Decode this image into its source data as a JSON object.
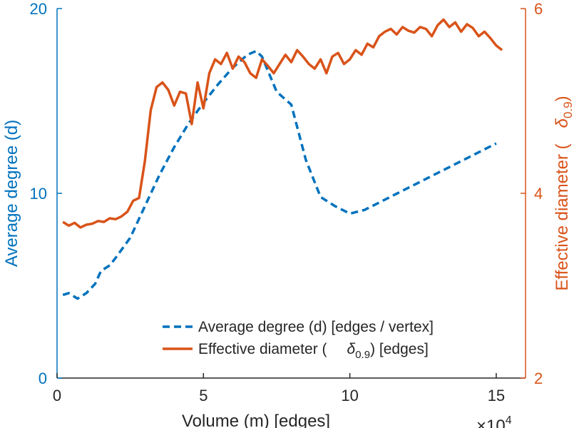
{
  "chart_data": {
    "type": "line",
    "xlabel": "Volume (m) [edges]",
    "x_exponent_base": "×10",
    "x_exponent_power": "4",
    "xlim": [
      0,
      16
    ],
    "xticks": [
      0,
      5,
      10,
      15
    ],
    "ylabel_left": "Average degree (d)",
    "ylim_left": [
      0,
      20
    ],
    "yticks_left": [
      0,
      10,
      20
    ],
    "ylabel_right": "Effective diameter (δ0.9)",
    "ylabel_right_text": "Effective diameter (",
    "ylabel_right_symbol": "δ",
    "ylabel_right_sub": "0.9",
    "ylabel_right_close": ")",
    "ylim_right": [
      2,
      6
    ],
    "yticks_right": [
      2,
      4,
      6
    ],
    "grid": false,
    "legend_position": "bottom-center",
    "colors": {
      "left_axis": "#0072BD",
      "right_axis": "#D95319",
      "frame": "#262626"
    },
    "series": [
      {
        "name": "Average degree (d) [edges / vertex]",
        "axis": "left",
        "style": "dashed",
        "color": "#0072BD",
        "x": [
          0.2,
          0.4,
          0.7,
          1.0,
          1.3,
          1.5,
          1.8,
          2.0,
          2.5,
          3.0,
          3.5,
          4.0,
          4.5,
          5.0,
          5.5,
          6.0,
          6.5,
          6.8,
          7.0,
          7.5,
          8.0,
          8.5,
          9.0,
          9.5,
          10.0,
          10.5,
          11.0,
          11.5,
          12.0,
          12.5,
          13.0,
          13.5,
          14.0,
          14.5,
          15.0
        ],
        "values": [
          4.5,
          4.6,
          4.3,
          4.6,
          5.1,
          5.8,
          6.1,
          6.5,
          7.6,
          9.3,
          11.0,
          12.5,
          13.8,
          14.9,
          15.9,
          16.8,
          17.5,
          17.7,
          17.4,
          15.5,
          14.8,
          11.8,
          9.8,
          9.3,
          8.9,
          9.1,
          9.5,
          9.9,
          10.3,
          10.7,
          11.1,
          11.5,
          11.9,
          12.3,
          12.7
        ]
      },
      {
        "name": "Effective diameter (δ0.9) [edges]",
        "name_text": "Effective diameter (",
        "name_symbol": "δ",
        "name_sub": "0.9",
        "name_tail": ") [edges]",
        "axis": "right",
        "style": "solid",
        "color": "#D95319",
        "x": [
          0.2,
          0.4,
          0.6,
          0.8,
          1.0,
          1.2,
          1.4,
          1.6,
          1.8,
          2.0,
          2.2,
          2.4,
          2.6,
          2.8,
          3.0,
          3.2,
          3.4,
          3.6,
          3.8,
          4.0,
          4.2,
          4.4,
          4.6,
          4.8,
          5.0,
          5.2,
          5.4,
          5.6,
          5.8,
          6.0,
          6.2,
          6.4,
          6.6,
          6.8,
          7.0,
          7.2,
          7.4,
          7.6,
          7.8,
          8.0,
          8.2,
          8.4,
          8.6,
          8.8,
          9.0,
          9.2,
          9.4,
          9.6,
          9.8,
          10.0,
          10.2,
          10.4,
          10.6,
          10.8,
          11.0,
          11.2,
          11.4,
          11.6,
          11.8,
          12.0,
          12.2,
          12.4,
          12.6,
          12.8,
          13.0,
          13.2,
          13.4,
          13.6,
          13.8,
          14.0,
          14.2,
          14.4,
          14.6,
          14.8,
          15.0,
          15.2
        ],
        "values": [
          3.69,
          3.65,
          3.68,
          3.63,
          3.66,
          3.67,
          3.7,
          3.69,
          3.73,
          3.72,
          3.75,
          3.8,
          3.92,
          3.95,
          4.35,
          4.9,
          5.15,
          5.2,
          5.12,
          4.95,
          5.1,
          5.08,
          4.75,
          5.2,
          4.92,
          5.3,
          5.45,
          5.4,
          5.52,
          5.35,
          5.48,
          5.42,
          5.3,
          5.25,
          5.45,
          5.38,
          5.3,
          5.4,
          5.5,
          5.42,
          5.55,
          5.48,
          5.4,
          5.35,
          5.45,
          5.3,
          5.48,
          5.52,
          5.4,
          5.45,
          5.55,
          5.5,
          5.62,
          5.58,
          5.7,
          5.75,
          5.78,
          5.72,
          5.8,
          5.76,
          5.74,
          5.8,
          5.78,
          5.7,
          5.82,
          5.88,
          5.8,
          5.85,
          5.75,
          5.83,
          5.79,
          5.7,
          5.75,
          5.68,
          5.6,
          5.55
        ]
      }
    ]
  }
}
